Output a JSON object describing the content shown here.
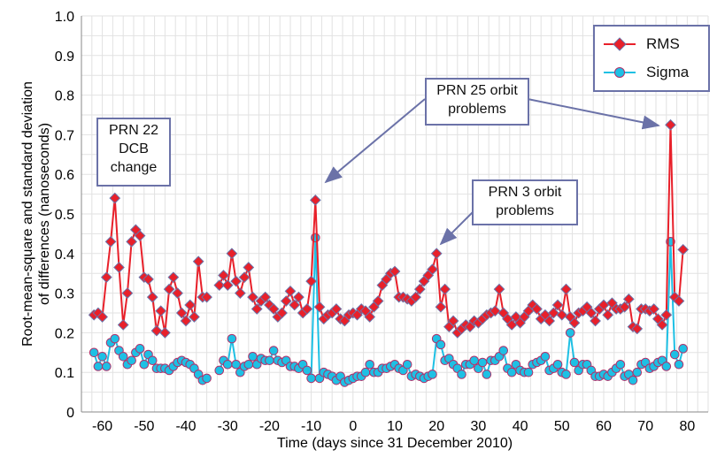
{
  "chart_data": {
    "type": "line",
    "ylabel_lines": [
      "Root-mean-square and standard deviation",
      "of differences (nanoseconds)"
    ],
    "xlabel": "Time (days since 31 December 2010)",
    "xlim": [
      -65,
      85
    ],
    "ylim": [
      0,
      1
    ],
    "xticks": [
      -60,
      -50,
      -40,
      -30,
      -20,
      -10,
      0,
      10,
      20,
      30,
      40,
      50,
      60,
      70,
      80
    ],
    "yticks": [
      "0",
      "0.1",
      "0.2",
      "0.3",
      "0.4",
      "0.5",
      "0.6",
      "0.7",
      "0.8",
      "0.9",
      "1.0"
    ],
    "grid": true,
    "legend": {
      "placement": "top-right",
      "entries": [
        "RMS",
        "Sigma"
      ]
    },
    "colors": {
      "RMS": "#e8202a",
      "Sigma": "#1ec0e4",
      "marker_edge_rms": "#6b72a8",
      "marker_edge_sigma": "#b0306a"
    },
    "segments": [
      {
        "start_day": -62,
        "RMS": [
          0.245,
          0.25,
          0.24,
          0.34,
          0.43,
          0.54,
          0.365,
          0.22,
          0.3,
          0.43,
          0.46,
          0.445,
          0.34,
          0.335,
          0.29,
          0.205,
          0.255,
          0.2,
          0.31,
          0.34,
          0.3,
          0.25,
          0.23,
          0.27,
          0.24,
          0.38,
          0.29,
          0.29
        ],
        "Sigma": [
          0.15,
          0.115,
          0.14,
          0.115,
          0.175,
          0.185,
          0.155,
          0.14,
          0.12,
          0.13,
          0.15,
          0.16,
          0.12,
          0.145,
          0.13,
          0.11,
          0.11,
          0.11,
          0.105,
          0.115,
          0.125,
          0.13,
          0.125,
          0.12,
          0.11,
          0.095,
          0.08,
          0.085
        ]
      },
      {
        "start_day": -32,
        "RMS": [
          0.32,
          0.345,
          0.32,
          0.4,
          0.33,
          0.3,
          0.34,
          0.365,
          0.29,
          0.26,
          0.28,
          0.29,
          0.27,
          0.26,
          0.24,
          0.25,
          0.28,
          0.305,
          0.27,
          0.29,
          0.25,
          0.26,
          0.33,
          0.535,
          0.265,
          0.235,
          0.245,
          0.25,
          0.26,
          0.235,
          0.23,
          0.245,
          0.25,
          0.245,
          0.26,
          0.255,
          0.24,
          0.265,
          0.28,
          0.32,
          0.335,
          0.35,
          0.355,
          0.29,
          0.29,
          0.285,
          0.28,
          0.29,
          0.31,
          0.33,
          0.345,
          0.36,
          0.4,
          0.265,
          0.31,
          0.215,
          0.23,
          0.2,
          0.21,
          0.22,
          0.215,
          0.23,
          0.225,
          0.235,
          0.245,
          0.25,
          0.255,
          0.31,
          0.25,
          0.235,
          0.22,
          0.24,
          0.225,
          0.24,
          0.255,
          0.27,
          0.26,
          0.235,
          0.245,
          0.23,
          0.25,
          0.27,
          0.245,
          0.31,
          0.24,
          0.225,
          0.25,
          0.255,
          0.265,
          0.25,
          0.23,
          0.26,
          0.27,
          0.245,
          0.275,
          0.26,
          0.26,
          0.265,
          0.285,
          0.215,
          0.21,
          0.26,
          0.26,
          0.255,
          0.26,
          0.235,
          0.22,
          0.245,
          0.725,
          0.29,
          0.28,
          0.41
        ],
        "Sigma": [
          0.105,
          0.13,
          0.12,
          0.185,
          0.12,
          0.1,
          0.115,
          0.12,
          0.14,
          0.12,
          0.135,
          0.13,
          0.13,
          0.155,
          0.13,
          0.125,
          0.13,
          0.115,
          0.115,
          0.11,
          0.12,
          0.105,
          0.085,
          0.44,
          0.085,
          0.1,
          0.095,
          0.09,
          0.08,
          0.09,
          0.075,
          0.08,
          0.085,
          0.09,
          0.09,
          0.1,
          0.12,
          0.1,
          0.1,
          0.11,
          0.11,
          0.115,
          0.12,
          0.11,
          0.105,
          0.12,
          0.09,
          0.095,
          0.09,
          0.085,
          0.09,
          0.095,
          0.185,
          0.17,
          0.13,
          0.135,
          0.12,
          0.11,
          0.095,
          0.12,
          0.12,
          0.13,
          0.11,
          0.125,
          0.095,
          0.13,
          0.13,
          0.14,
          0.155,
          0.11,
          0.1,
          0.12,
          0.105,
          0.1,
          0.1,
          0.12,
          0.125,
          0.13,
          0.14,
          0.105,
          0.11,
          0.12,
          0.1,
          0.095,
          0.2,
          0.125,
          0.105,
          0.12,
          0.12,
          0.105,
          0.09,
          0.09,
          0.095,
          0.09,
          0.1,
          0.11,
          0.12,
          0.09,
          0.095,
          0.08,
          0.1,
          0.12,
          0.125,
          0.11,
          0.115,
          0.125,
          0.13,
          0.115,
          0.43,
          0.145,
          0.12,
          0.16
        ]
      }
    ],
    "annotations": [
      {
        "lines": [
          "PRN 22",
          "DCB",
          "change"
        ]
      },
      {
        "lines": [
          "PRN 25 orbit",
          "problems"
        ]
      },
      {
        "lines": [
          "PRN 3 orbit",
          "problems"
        ]
      }
    ]
  }
}
